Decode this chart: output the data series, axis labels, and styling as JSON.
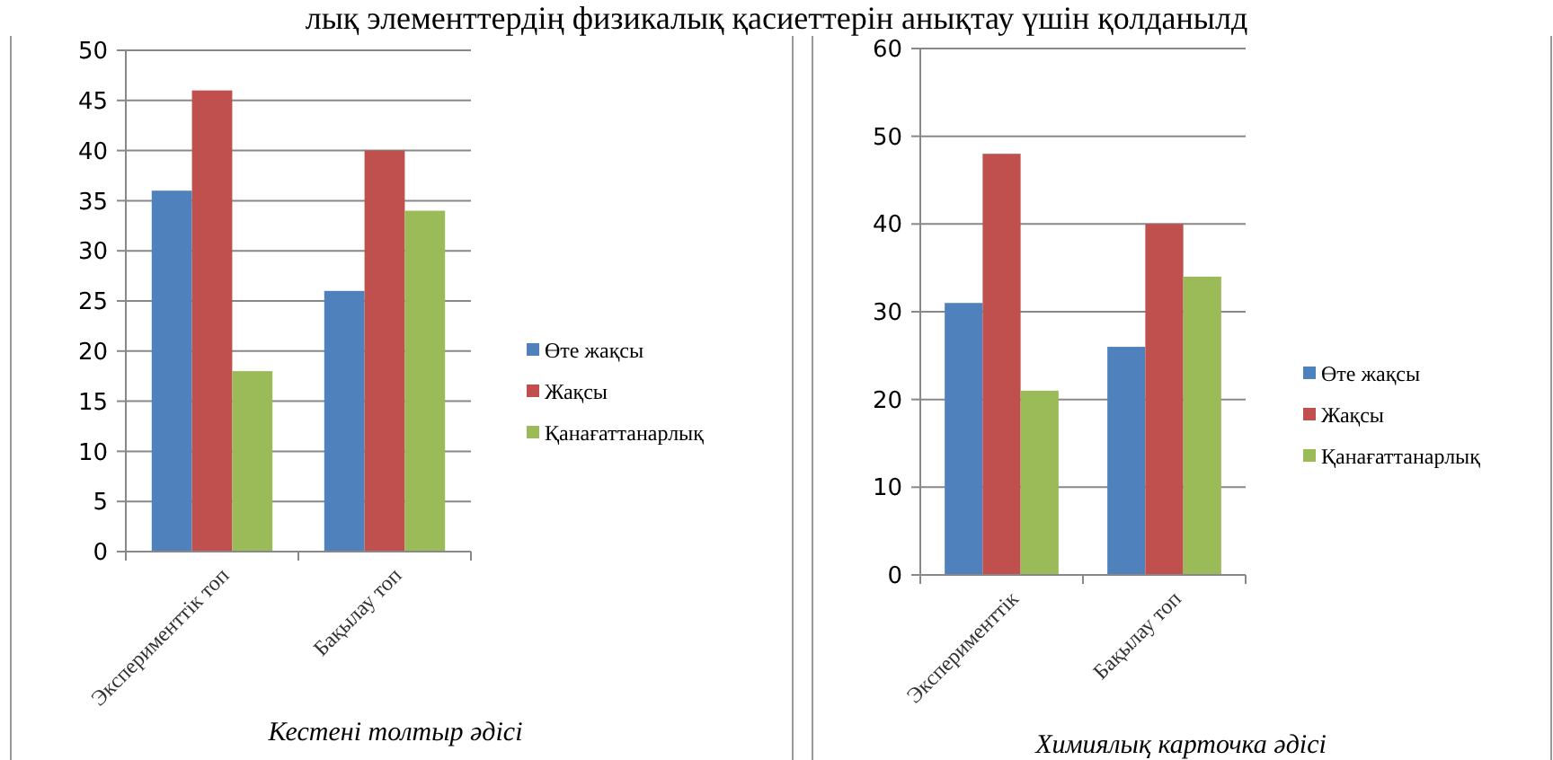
{
  "chart_data": [
    {
      "type": "bar",
      "title": "Кестені толтыр әдісі",
      "categories": [
        "Эксперименттік топ",
        "Бақылау топ"
      ],
      "series": [
        {
          "name": "Өте жақсы",
          "color": "#4f81bd",
          "values": [
            36,
            26
          ]
        },
        {
          "name": "Жақсы",
          "color": "#c0504d",
          "values": [
            46,
            40
          ]
        },
        {
          "name": "Қанағаттанарлық",
          "color": "#9bbb59",
          "values": [
            18,
            34
          ]
        }
      ],
      "ylim": [
        0,
        50
      ],
      "yticks": [
        0,
        5,
        10,
        15,
        20,
        25,
        30,
        35,
        40,
        45,
        50
      ],
      "grid": "y",
      "legend": "right",
      "annotations": [
        "лық элементтердің физикалық қасиеттерін анықтау үшін қолданылд"
      ]
    },
    {
      "type": "bar",
      "title": "Химиялық карточка әдісі",
      "categories": [
        "Эксперименттік",
        "Бақылау топ"
      ],
      "series": [
        {
          "name": "Өте жақсы",
          "color": "#4f81bd",
          "values": [
            31,
            26
          ]
        },
        {
          "name": "Жақсы",
          "color": "#c0504d",
          "values": [
            48,
            40
          ]
        },
        {
          "name": "Қанағаттанарлық",
          "color": "#9bbb59",
          "values": [
            21,
            34
          ]
        }
      ],
      "ylim": [
        0,
        60
      ],
      "yticks": [
        0,
        10,
        20,
        30,
        40,
        50,
        60
      ],
      "grid": "y",
      "legend": "right"
    }
  ]
}
